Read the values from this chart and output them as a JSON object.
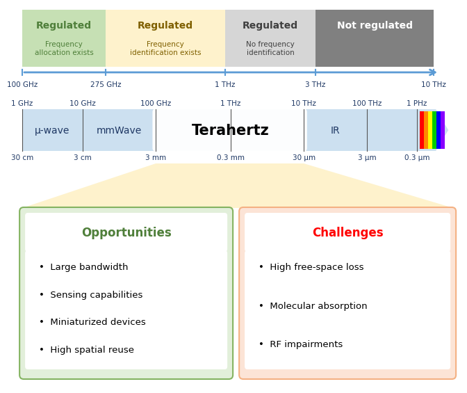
{
  "bg_color": "#ffffff",
  "top_bar_colors": [
    "#c6e0b4",
    "#fef2cc",
    "#d6d6d6",
    "#808080"
  ],
  "top_bar_labels": [
    "Regulated",
    "Regulated",
    "Regulated",
    "Not regulated"
  ],
  "top_bar_sublabels": [
    "Frequency\nallocation exists",
    "Frequency\nidentification exists",
    "No frequency\nidentification",
    ""
  ],
  "top_bar_label_colors": [
    "#4f7f3a",
    "#7f6000",
    "#404040",
    "#ffffff"
  ],
  "top_axis_ticks": [
    "100 GHz",
    "275 GHz",
    "1 THz",
    "3 THz",
    "10 THz"
  ],
  "spectrum_bar_color": "#cce0f0",
  "spectrum_ticks_top": [
    "1 GHz",
    "10 GHz",
    "100 GHz",
    "1 THz",
    "10 THz",
    "100 THz",
    "1 PHz"
  ],
  "spectrum_ticks_bottom": [
    "30 cm",
    "3 cm",
    "3 mm",
    "0.3 mm",
    "30 μm",
    "3 μm",
    "0.3 μm"
  ],
  "spectrum_labels": [
    "μ-wave",
    "mmWave",
    "Terahertz",
    "IR"
  ],
  "arrow_color": "#5b9bd5",
  "opp_title": "Opportunities",
  "opp_title_color": "#4f7f3a",
  "opp_items": [
    "Large bandwidth",
    "Sensing capabilities",
    "Miniaturized devices",
    "High spatial reuse"
  ],
  "opp_box_color": "#e2efda",
  "opp_box_border": "#84b361",
  "chal_title": "Challenges",
  "chal_title_color": "#ff0000",
  "chal_items": [
    "High free-space loss",
    "Molecular absorption",
    "RF impairments"
  ],
  "chal_box_color": "#fce4d6",
  "chal_box_border": "#f4b183",
  "funnel_color": "#fef2cc",
  "text_color_dark": "#1f3864",
  "rainbow_colors": [
    "#ff0000",
    "#ff8800",
    "#ffff00",
    "#00cc00",
    "#0000ff",
    "#8800ff"
  ]
}
